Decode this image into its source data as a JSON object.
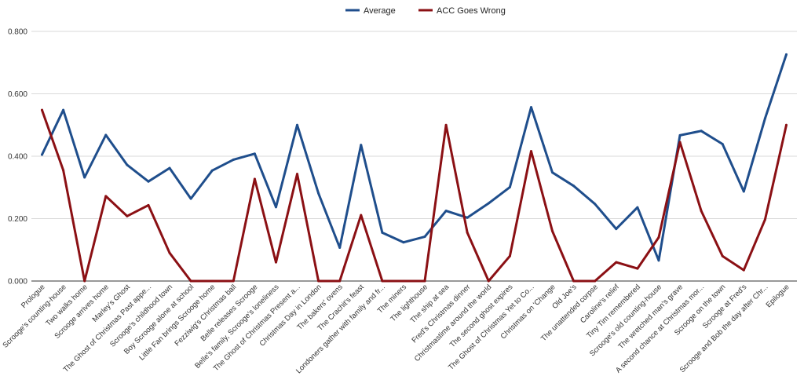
{
  "chart_data": {
    "type": "line",
    "title": "",
    "xlabel": "",
    "ylabel": "",
    "ylim": [
      0,
      0.8
    ],
    "yticks": [
      "0.000",
      "0.200",
      "0.400",
      "0.600",
      "0.800"
    ],
    "ytick_values": [
      0,
      0.2,
      0.4,
      0.6,
      0.8
    ],
    "grid": true,
    "legend_position": "top-center",
    "categories": [
      "Prologue",
      "Scrooge's counting-house",
      "Two walks home",
      "Scrooge arrives home",
      "Marley's Ghost",
      "The Ghost of Christmas Past appe...",
      "Scrooge's childhood town",
      "Boy Scrooge alone at school",
      "Little Fan brings Scrooge home",
      "Fezziwig's Christmas ball",
      "Belle releases Scrooge",
      "Belle's family, Scrooge's loneliness",
      "The Ghost of Christmas Present a...",
      "Christmas Day in London",
      "The bakers' ovens",
      "The Crachit's feast",
      "Londoners gather with family and fr...",
      "The miners",
      "The lighthouse",
      "The ship at sea",
      "Fred's Christmas dinner",
      "Christmastime around the world",
      "The second ghost expires",
      "The Ghost of Christmas Yet to Co...",
      "Christmas on 'Change",
      "Old Joe's",
      "The unattended corpse",
      "Caroline's relief",
      "Tiny Tim remembered",
      "Scrooge's old counting-house",
      "The wretched man's grave",
      "A second chance at Christmas mor...",
      "Scrooge on the town",
      "Scrooge at Fred's",
      "Scrooge and Bob the day after Chr...",
      "Epilogue"
    ],
    "series": [
      {
        "name": "Average",
        "color": "#1f4e8c",
        "values": [
          0.405,
          0.548,
          0.332,
          0.468,
          0.372,
          0.319,
          0.362,
          0.264,
          0.354,
          0.389,
          0.408,
          0.237,
          0.5,
          0.281,
          0.107,
          0.436,
          0.155,
          0.124,
          0.142,
          0.225,
          0.203,
          0.249,
          0.301,
          0.557,
          0.348,
          0.305,
          0.247,
          0.167,
          0.236,
          0.066,
          0.467,
          0.481,
          0.439,
          0.287,
          0.521,
          0.726
        ]
      },
      {
        "name": "ACC Goes Wrong",
        "color": "#8b1014",
        "values": [
          0.548,
          0.355,
          0.0,
          0.272,
          0.208,
          0.243,
          0.09,
          0.0,
          0.0,
          0.0,
          0.327,
          0.06,
          0.343,
          0.0,
          0.0,
          0.211,
          0.0,
          0.0,
          0.0,
          0.5,
          0.155,
          0.0,
          0.08,
          0.416,
          0.16,
          0.0,
          0.0,
          0.06,
          0.04,
          0.14,
          0.445,
          0.225,
          0.08,
          0.035,
          0.197,
          0.5
        ]
      }
    ]
  }
}
